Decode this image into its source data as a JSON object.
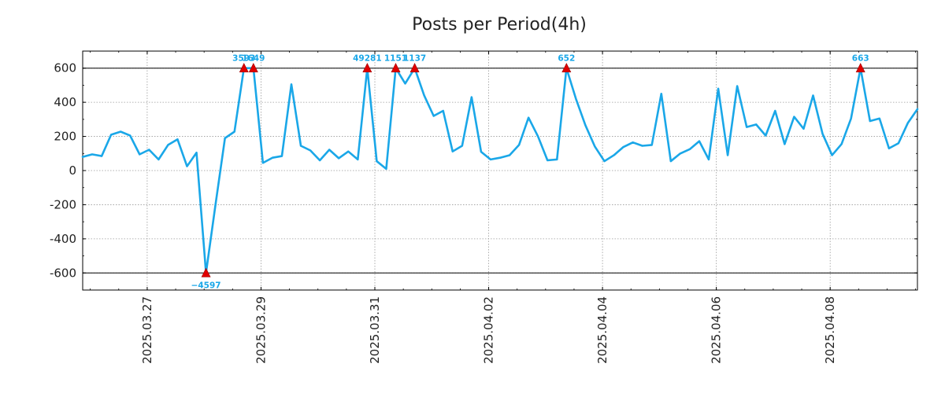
{
  "chart_data": {
    "type": "line",
    "title": "Posts per Period(4h)",
    "xlabel": "",
    "ylabel": "",
    "ylim": [
      -700,
      700
    ],
    "x_start": 0,
    "x_end": 88,
    "grid": true,
    "colors": {
      "line": "#1aa7e8",
      "marker": "#e00000",
      "label": "#1aa7e8",
      "clip_line": "#000000"
    },
    "yticks": [
      {
        "value": 600,
        "label": "600"
      },
      {
        "value": 400,
        "label": "400"
      },
      {
        "value": 200,
        "label": "200"
      },
      {
        "value": 0,
        "label": "0"
      },
      {
        "value": -200,
        "label": "-200"
      },
      {
        "value": -400,
        "label": "-400"
      },
      {
        "value": -600,
        "label": "-600"
      }
    ],
    "xticks": [
      {
        "value": 6.8,
        "label": "2025.03.27"
      },
      {
        "value": 18.8,
        "label": "2025.03.29"
      },
      {
        "value": 30.8,
        "label": "2025.03.31"
      },
      {
        "value": 42.8,
        "label": "2025.04.02"
      },
      {
        "value": 54.8,
        "label": "2025.04.04"
      },
      {
        "value": 66.8,
        "label": "2025.04.06"
      },
      {
        "value": 78.8,
        "label": "2025.04.08"
      }
    ],
    "clip_lines": [
      600,
      -600
    ],
    "series": [
      {
        "name": "posts",
        "values": [
          80,
          95,
          85,
          210,
          228,
          205,
          95,
          122,
          65,
          150,
          183,
          25,
          105,
          -600,
          -200,
          190,
          228,
          600,
          600,
          45,
          75,
          85,
          505,
          145,
          118,
          60,
          122,
          72,
          112,
          65,
          600,
          55,
          10,
          600,
          510,
          600,
          440,
          320,
          350,
          112,
          145,
          430,
          110,
          65,
          75,
          90,
          150,
          310,
          200,
          60,
          65,
          600,
          420,
          265,
          140,
          55,
          90,
          138,
          165,
          145,
          150,
          450,
          55,
          100,
          125,
          172,
          65,
          480,
          90,
          495,
          255,
          270,
          205,
          350,
          155,
          315,
          245,
          440,
          215,
          90,
          155,
          305,
          600,
          290,
          305,
          130,
          160,
          280,
          360
        ]
      }
    ],
    "annotations": [
      {
        "index": 13,
        "label": "−4597",
        "pos": "below"
      },
      {
        "index": 17,
        "label": "3593",
        "pos": "above"
      },
      {
        "index": 18,
        "label": "1649",
        "pos": "above"
      },
      {
        "index": 30,
        "label": "49281",
        "pos": "above"
      },
      {
        "index": 33,
        "label": "1151",
        "pos": "above"
      },
      {
        "index": 35,
        "label": "1137",
        "pos": "above"
      },
      {
        "index": 51,
        "label": "652",
        "pos": "above"
      },
      {
        "index": 82,
        "label": "663",
        "pos": "above"
      }
    ]
  }
}
